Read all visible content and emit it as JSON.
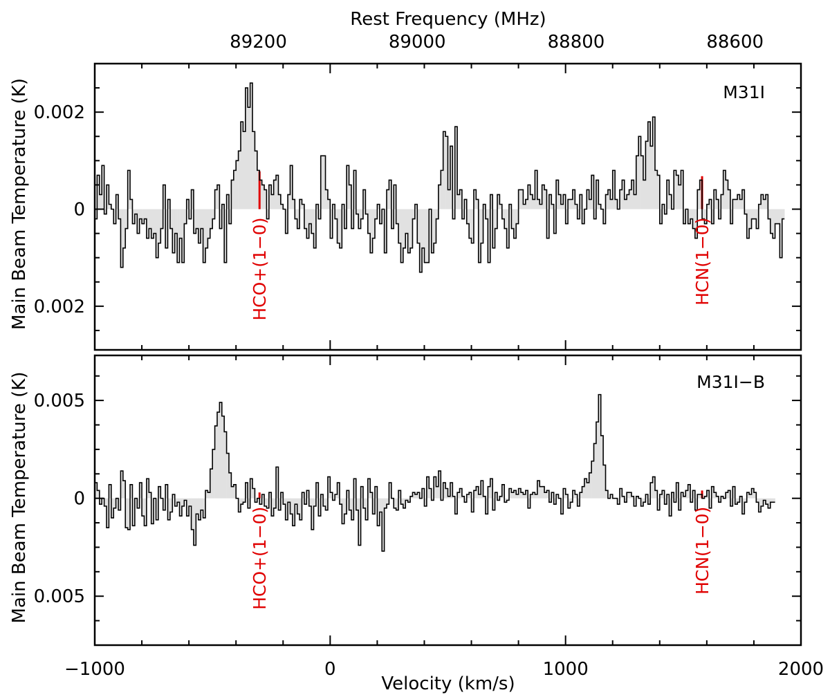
{
  "chart_data": [
    {
      "type": "line",
      "style": "step-histogram",
      "panel_label": "M31I",
      "ylabel": "Main Beam Temperature (K)",
      "ylim": [
        -0.0029,
        0.003
      ],
      "yticks": [
        {
          "value": 0.002,
          "label": "0.002"
        },
        {
          "value": 0.0,
          "label": "0"
        },
        {
          "value": -0.002,
          "label": "0.002"
        }
      ],
      "lines": [
        {
          "name": "HCO+(1−0)",
          "velocity": -300,
          "height": 0.00078,
          "label": "HCO+(1−0)"
        },
        {
          "name": "HCN(1−0)",
          "velocity": 1580,
          "height": 0.00068,
          "label": "HCN(1−0)"
        }
      ],
      "series": [
        {
          "name": "M31I spectrum",
          "x_start": -1000,
          "x_step": 10,
          "values": [
            -0.0002,
            0.0007,
            0.0003,
            0.0009,
            -0.0001,
            0.0005,
            0.0001,
            0.0,
            -0.0003,
            0.0003,
            -0.0002,
            -0.0012,
            -0.0008,
            -0.0004,
            0.0008,
            0.0002,
            -0.0003,
            -0.0001,
            -0.0005,
            -0.0002,
            -0.0003,
            -0.0002,
            -0.0006,
            -0.0004,
            -0.0006,
            -0.0005,
            -0.001,
            -0.0007,
            -0.0004,
            0.0005,
            -0.0008,
            0.0002,
            -0.0004,
            -0.0009,
            -0.0005,
            -0.0011,
            -0.0006,
            -0.0011,
            -0.0003,
            0.0002,
            -0.0002,
            0.0004,
            -0.0005,
            -0.0004,
            -0.0007,
            -0.0004,
            -0.0011,
            -0.0008,
            -0.0006,
            -0.0004,
            -0.0002,
            0.0004,
            0.0005,
            -0.0004,
            0.0001,
            -0.0011,
            0.0003,
            -0.0003,
            0.0006,
            0.0008,
            0.001,
            0.0012,
            0.0018,
            0.0016,
            0.0025,
            0.0021,
            0.0026,
            0.0016,
            0.0012,
            0.0008,
            0.0006,
            0.0005,
            0.0004,
            -0.0002,
            0.0005,
            0.0003,
            0.0006,
            0.0007,
            0.0003,
            0.0001,
            0.0,
            -0.0005,
            0.0003,
            0.0009,
            0.0002,
            -0.0002,
            -0.0004,
            0.0002,
            0.0001,
            -0.0004,
            -0.0006,
            -0.0003,
            -0.0005,
            -0.0008,
            0.0001,
            -0.0002,
            0.0011,
            0.0011,
            0.0004,
            0.0002,
            -0.0006,
            0.0001,
            -0.0002,
            -0.0007,
            -0.0008,
            0.0001,
            -0.0004,
            0.0009,
            0.0005,
            -0.0004,
            0.0008,
            -0.0001,
            -0.0004,
            -0.0002,
            0.0004,
            -0.0001,
            -0.0005,
            -0.0009,
            -0.0006,
            -0.0002,
            0.0001,
            -0.0003,
            0.0,
            -0.0009,
            0.0004,
            0.0006,
            -0.0004,
            0.0005,
            -0.0003,
            -0.0007,
            -0.0011,
            -0.0008,
            -0.0005,
            -0.0009,
            -0.0008,
            -0.0002,
            0.0001,
            -0.0007,
            -0.0013,
            -0.0008,
            -0.0011,
            -0.0011,
            0.0,
            -0.0009,
            -0.0007,
            -0.0002,
            0.0005,
            0.0008,
            0.0016,
            0.0015,
            0.0004,
            0.0013,
            -0.0002,
            0.0017,
            0.0003,
            0.0004,
            -0.0002,
            0.0002,
            -0.0003,
            -0.0006,
            -0.0007,
            0.0004,
            0.0002,
            -0.0011,
            -0.0007,
            0.0001,
            -0.0002,
            -0.0011,
            0.0003,
            -0.0008,
            -0.0004,
            0.0003,
            0.0001,
            -0.0002,
            -0.0004,
            -0.0008,
            0.0001,
            -0.0004,
            -0.0006,
            -0.0003,
            0.0004,
            0.0004,
            0.0001,
            0.0002,
            0.0005,
            0.0003,
            0.0002,
            0.0008,
            0.0002,
            0.0001,
            0.0005,
            0.0004,
            -0.0006,
            0.0003,
            0.0001,
            -0.0005,
            0.0006,
            0.0003,
            0.0001,
            0.0003,
            -0.0003,
            0.0002,
            0.0002,
            0.0004,
            0.0001,
            -0.0002,
            0.0003,
            -0.0003,
            0.0,
            0.0004,
            0.0002,
            0.0007,
            -0.0002,
            0.0006,
            0.0001,
            0.0,
            -0.0003,
            0.0003,
            0.0004,
            0.0002,
            0.0008,
            0.0002,
            0.0,
            0.0004,
            0.0006,
            0.0002,
            0.0003,
            0.0004,
            0.0006,
            0.0003,
            0.0011,
            0.0015,
            0.0011,
            0.0006,
            0.0014,
            0.0018,
            0.0013,
            0.0019,
            0.0008,
            0.0007,
            -0.0003,
            0.0001,
            -0.0001,
            0.0006,
            0.0003,
            0.0,
            0.0008,
            0.0007,
            0.0005,
            0.0008,
            -0.0003,
            0.0,
            -0.0003,
            -0.0002,
            -0.0004,
            -0.0006,
            0.0004,
            0.0006,
            -0.0002,
            -0.0003,
            0.0001,
            0.0002,
            -0.0003,
            0.0004,
            0.0002,
            -0.0002,
            0.0003,
            0.0008,
            0.0006,
            0.0004,
            -0.0003,
            0.0002,
            0.0002,
            0.0003,
            0.0002,
            0.0004,
            -0.0001,
            -0.0006,
            -0.0004,
            -0.0002,
            -0.0002,
            -0.0004,
            0.0001,
            0.0003,
            0.0002,
            0.0003,
            -0.0002,
            -0.0005,
            -0.0006,
            -0.0003,
            -0.0003,
            -0.001,
            -0.0002
          ]
        }
      ]
    },
    {
      "type": "line",
      "style": "step-histogram",
      "panel_label": "M31I−B",
      "xlabel": "Velocity (km/s)",
      "ylabel": "Main Beam Temperature (K)",
      "xlim": [
        -1000,
        2000
      ],
      "ylim": [
        -0.0075,
        0.0073
      ],
      "xticks": [
        {
          "value": -1000,
          "label": "−1000"
        },
        {
          "value": 0,
          "label": "0"
        },
        {
          "value": 1000,
          "label": "1000"
        },
        {
          "value": 2000,
          "label": "2000"
        }
      ],
      "yticks": [
        {
          "value": 0.005,
          "label": "0.005"
        },
        {
          "value": 0.0,
          "label": "0"
        },
        {
          "value": -0.005,
          "label": "0.005"
        }
      ],
      "top_axis": {
        "label": "Rest Frequency (MHz)",
        "ticks": [
          {
            "velocity": -305,
            "label": "89200"
          },
          {
            "velocity": 370,
            "label": "89000"
          },
          {
            "velocity": 1045,
            "label": "88800"
          },
          {
            "velocity": 1720,
            "label": "88600"
          }
        ]
      },
      "lines": [
        {
          "name": "HCO+(1−0)",
          "velocity": -300,
          "height": 0.0003,
          "label": "HCO+(1−0)"
        },
        {
          "name": "HCN(1−0)",
          "velocity": 1580,
          "height": 0.0004,
          "label": "HCN(1−0)"
        }
      ],
      "series": [
        {
          "name": "M31I-B spectrum",
          "x_start": -1000,
          "x_step": 10,
          "values": [
            0.0008,
            0.0004,
            -0.0003,
            0.0,
            -0.0004,
            -0.0015,
            0.0007,
            -0.001,
            -0.0005,
            0.0,
            -0.0006,
            0.0014,
            0.0009,
            -0.0015,
            -0.0016,
            0.0007,
            -0.0014,
            0.0,
            -0.0005,
            0.0008,
            -0.0009,
            -0.0014,
            0.001,
            0.0003,
            -0.0013,
            0.0,
            -0.0011,
            0.0006,
            0.0,
            -0.0006,
            0.0007,
            -0.0011,
            -0.0007,
            0.0002,
            -0.0004,
            -0.0002,
            -0.0009,
            -0.0004,
            -0.0001,
            -0.0009,
            -0.0004,
            -0.0016,
            -0.0024,
            -0.0008,
            -0.0011,
            -0.0006,
            -0.001,
            0.0004,
            0.0003,
            0.0015,
            0.0025,
            0.0037,
            0.0044,
            0.0049,
            0.0042,
            0.0034,
            0.0023,
            0.0013,
            0.0006,
            0.0007,
            0.0,
            -0.0007,
            -0.0003,
            -0.0002,
            0.0008,
            -0.0005,
            0.001,
            0.0005,
            -0.0002,
            0.0,
            -0.0003,
            0.0002,
            -0.0004,
            -0.0005,
            0.0003,
            -0.0009,
            -0.0005,
            0.0016,
            -0.0006,
            0.0003,
            -0.0003,
            -0.0011,
            -0.0002,
            -0.0008,
            -0.0014,
            -0.0003,
            -0.0008,
            -0.0011,
            0.0003,
            -0.0003,
            0.0004,
            -0.0004,
            -0.0016,
            -0.0004,
            0.0008,
            -0.0009,
            0.0002,
            -0.0004,
            -0.0006,
            0.0011,
            0.0003,
            -0.0001,
            0.0002,
            0.0008,
            -0.0003,
            -0.0013,
            -0.0008,
            0.0004,
            -0.0006,
            -0.0011,
            0.001,
            -0.0006,
            -0.0024,
            0.0006,
            -0.0005,
            -0.0011,
            0.001,
            0.0003,
            -0.0008,
            0.0006,
            -0.0014,
            -0.0007,
            -0.0027,
            -0.0005,
            -0.0003,
            0.0008,
            0.0,
            -0.0005,
            -0.0006,
            0.0004,
            -0.0003,
            -0.0005,
            -0.0001,
            -0.0002,
            0.0001,
            0.0003,
            0.0002,
            0.0003,
            0.0,
            0.0005,
            -0.0004,
            0.0011,
            0.0005,
            -0.0001,
            0.0011,
            0.0006,
            0.0014,
            -0.0001,
            0.0008,
            0.0005,
            0.0001,
            0.0008,
            0.0001,
            -0.0008,
            0.0003,
            0.0005,
            0.0001,
            -0.0002,
            0.0002,
            0.0003,
            -0.0007,
            0.0004,
            0.0006,
            0.0002,
            0.0009,
            0.0001,
            -0.0008,
            0.0006,
            0.001,
            -0.0006,
            0.0003,
            -0.0001,
            0.0001,
            0.0007,
            -0.0002,
            -0.0001,
            0.0005,
            0.0003,
            0.0004,
            0.0002,
            0.0005,
            0.0003,
            0.0002,
            0.0004,
            -0.0005,
            0.0002,
            0.0003,
            0.0002,
            0.0009,
            0.0006,
            0.0006,
            0.0003,
            0.0004,
            -0.0002,
            0.0003,
            -0.0003,
            0.0002,
            0.0,
            -0.0008,
            0.0005,
            0.0002,
            -0.0005,
            -0.0002,
            0.0004,
            0.0002,
            -0.0004,
            0.0003,
            0.0006,
            0.001,
            0.0008,
            0.0013,
            0.0019,
            0.0028,
            0.0039,
            0.0053,
            0.0032,
            0.0017,
            0.0004,
            0.0,
            0.0002,
            0.0,
            0.0,
            -0.0003,
            0.0005,
            0.0001,
            -0.0002,
            0.0003,
            0.0003,
            0.0001,
            -0.0004,
            0.0001,
            0.0,
            -0.0004,
            -0.0002,
            0.0002,
            -0.0003,
            0.0008,
            0.0011,
            0.0004,
            -0.0006,
            0.0002,
            0.0004,
            -0.0003,
            0.0002,
            -0.0009,
            0.0003,
            -0.0002,
            0.0008,
            -0.0006,
            0.0003,
            0.0001,
            0.0004,
            0.0007,
            -0.0002,
            0.0004,
            -0.0006,
            0.0002,
            0.0002,
            0.0,
            0.0001,
            0.0004,
            -0.0005,
            0.0006,
            0.0003,
            0.0001,
            -0.0002,
            0.0001,
            0.0,
            0.0003,
            0.0004,
            -0.0004,
            0.0006,
            -0.0003,
            -0.0002,
            0.0001,
            -0.0008,
            -0.0002,
            0.0003,
            0.0002,
            0.0005,
            0.0003,
            -0.0002,
            -0.0007,
            -0.0004,
            -0.0001,
            -0.0003,
            -0.0005,
            -0.0002,
            -0.0002
          ]
        }
      ]
    }
  ]
}
